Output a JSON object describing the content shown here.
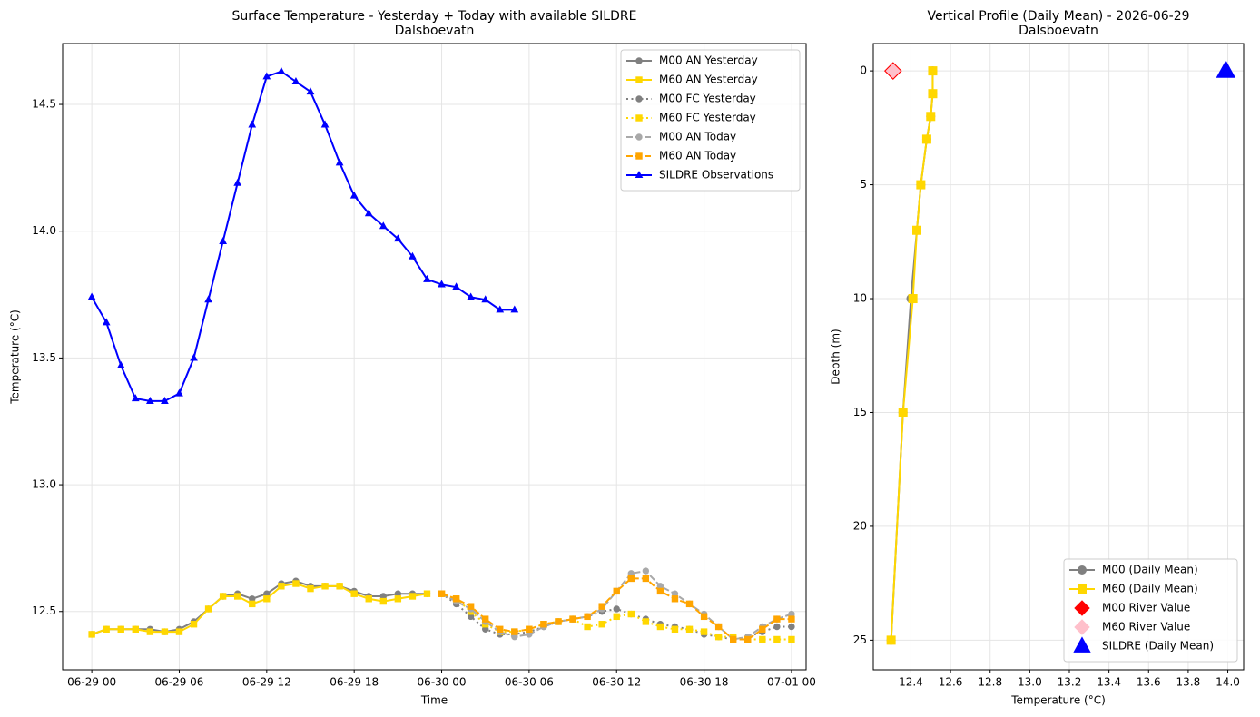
{
  "chart_data": [
    {
      "type": "line",
      "title": "Surface Temperature - Yesterday + Today with available SILDRE",
      "subtitle": "Dalsboevatn",
      "x_label": "Time",
      "y_label": "Temperature (°C)",
      "grid": true,
      "legend": "upper right",
      "xlim": [
        "06-28 22",
        "07-01 01"
      ],
      "xticks": [
        "06-29 00",
        "06-29 06",
        "06-29 12",
        "06-29 18",
        "06-30 00",
        "06-30 06",
        "06-30 12",
        "06-30 18",
        "07-01 00"
      ],
      "ylim": [
        12.27,
        14.74
      ],
      "yticks": [
        12.5,
        {
          "value": 13,
          "label": "13.0"
        },
        13.5,
        {
          "value": 14,
          "label": "14.0"
        },
        14.5
      ],
      "x": [
        "06-29 00",
        "06-29 01",
        "06-29 02",
        "06-29 03",
        "06-29 04",
        "06-29 05",
        "06-29 06",
        "06-29 07",
        "06-29 08",
        "06-29 09",
        "06-29 10",
        "06-29 11",
        "06-29 12",
        "06-29 13",
        "06-29 14",
        "06-29 15",
        "06-29 16",
        "06-29 17",
        "06-29 18",
        "06-29 19",
        "06-29 20",
        "06-29 21",
        "06-29 22",
        "06-29 23",
        "06-30 00",
        "06-30 01",
        "06-30 02",
        "06-30 03",
        "06-30 04",
        "06-30 05",
        "06-30 06",
        "06-30 07",
        "06-30 08",
        "06-30 09",
        "06-30 10",
        "06-30 11",
        "06-30 12",
        "06-30 13",
        "06-30 14",
        "06-30 15",
        "06-30 16",
        "06-30 17",
        "06-30 18",
        "06-30 19",
        "06-30 20",
        "06-30 21",
        "06-30 22",
        "06-30 23",
        "07-01 00"
      ],
      "series": [
        {
          "name": "M00 AN Yesterday",
          "color": "#808080",
          "line_style": "solid",
          "marker": "circle",
          "values": [
            12.41,
            12.43,
            12.43,
            12.43,
            12.43,
            12.42,
            12.43,
            12.46,
            12.51,
            12.56,
            12.57,
            12.55,
            12.57,
            12.61,
            12.62,
            12.6,
            12.6,
            12.6,
            12.58,
            12.56,
            12.56,
            12.57,
            12.57,
            12.57,
            null,
            null,
            null,
            null,
            null,
            null,
            null,
            null,
            null,
            null,
            null,
            null,
            null,
            null,
            null,
            null,
            null,
            null,
            null,
            null,
            null,
            null,
            null,
            null,
            null
          ]
        },
        {
          "name": "M60 AN Yesterday",
          "color": "#ffd700",
          "line_style": "solid",
          "marker": "square",
          "values": [
            12.41,
            12.43,
            12.43,
            12.43,
            12.42,
            12.42,
            12.42,
            12.45,
            12.51,
            12.56,
            12.56,
            12.53,
            12.55,
            12.6,
            12.61,
            12.59,
            12.6,
            12.6,
            12.57,
            12.55,
            12.54,
            12.55,
            12.56,
            12.57,
            null,
            null,
            null,
            null,
            null,
            null,
            null,
            null,
            null,
            null,
            null,
            null,
            null,
            null,
            null,
            null,
            null,
            null,
            null,
            null,
            null,
            null,
            null,
            null,
            null
          ]
        },
        {
          "name": "M00 FC Yesterday",
          "color": "#808080",
          "line_style": "dotted",
          "marker": "circle",
          "values": [
            null,
            null,
            null,
            null,
            null,
            null,
            null,
            null,
            null,
            null,
            null,
            null,
            null,
            null,
            null,
            null,
            null,
            null,
            null,
            null,
            null,
            null,
            null,
            null,
            12.57,
            12.53,
            12.48,
            12.43,
            12.41,
            12.41,
            12.42,
            12.44,
            12.46,
            12.47,
            12.48,
            12.5,
            12.51,
            12.49,
            12.47,
            12.45,
            12.44,
            12.43,
            12.41,
            12.4,
            12.39,
            12.4,
            12.42,
            12.44,
            12.44
          ]
        },
        {
          "name": "M60 FC Yesterday",
          "color": "#ffd700",
          "line_style": "dotted",
          "marker": "square",
          "values": [
            null,
            null,
            null,
            null,
            null,
            null,
            null,
            null,
            null,
            null,
            null,
            null,
            null,
            null,
            null,
            null,
            null,
            null,
            null,
            null,
            null,
            null,
            null,
            null,
            12.57,
            12.55,
            12.5,
            12.45,
            12.42,
            12.42,
            12.43,
            12.45,
            12.46,
            12.47,
            12.44,
            12.45,
            12.48,
            12.49,
            12.46,
            12.44,
            12.43,
            12.43,
            12.42,
            12.4,
            12.4,
            12.39,
            12.39,
            12.39,
            12.39
          ]
        },
        {
          "name": "M00 AN Today",
          "color": "#a9a9a9",
          "line_style": "dashed",
          "marker": "circle",
          "values": [
            null,
            null,
            null,
            null,
            null,
            null,
            null,
            null,
            null,
            null,
            null,
            null,
            null,
            null,
            null,
            null,
            null,
            null,
            null,
            null,
            null,
            null,
            null,
            null,
            12.57,
            12.54,
            12.51,
            12.46,
            12.42,
            12.4,
            12.41,
            12.44,
            12.46,
            12.47,
            12.48,
            12.51,
            12.58,
            12.65,
            12.66,
            12.6,
            12.57,
            12.53,
            12.49,
            12.44,
            12.39,
            12.4,
            12.44,
            12.47,
            12.49
          ]
        },
        {
          "name": "M60 AN Today",
          "color": "#ffa500",
          "line_style": "dashed",
          "marker": "square",
          "values": [
            null,
            null,
            null,
            null,
            null,
            null,
            null,
            null,
            null,
            null,
            null,
            null,
            null,
            null,
            null,
            null,
            null,
            null,
            null,
            null,
            null,
            null,
            null,
            null,
            12.57,
            12.55,
            12.52,
            12.47,
            12.43,
            12.42,
            12.43,
            12.45,
            12.46,
            12.47,
            12.48,
            12.52,
            12.58,
            12.63,
            12.63,
            12.58,
            12.55,
            12.53,
            12.48,
            12.44,
            12.39,
            12.39,
            12.43,
            12.47,
            12.47
          ]
        },
        {
          "name": "SILDRE Observations",
          "color": "#0000ff",
          "line_style": "solid",
          "marker": "triangle",
          "values": [
            13.74,
            13.64,
            13.47,
            13.34,
            13.33,
            13.33,
            13.36,
            13.5,
            13.73,
            13.96,
            14.19,
            14.42,
            14.61,
            14.63,
            14.59,
            14.55,
            14.42,
            14.27,
            14.14,
            14.07,
            14.02,
            13.97,
            13.9,
            13.81,
            13.79,
            13.78,
            13.74,
            13.73,
            13.69,
            13.69,
            null,
            null,
            null,
            null,
            null,
            null,
            null,
            null,
            null,
            null,
            null,
            null,
            null,
            null,
            null,
            null,
            null,
            null,
            null
          ]
        }
      ]
    },
    {
      "type": "line",
      "title": "Vertical Profile (Daily Mean) - 2026-06-29",
      "subtitle": "Dalsboevatn",
      "x_label": "Temperature (°C)",
      "y_label": "Depth (m)",
      "grid": true,
      "legend": "lower right",
      "y_inverted": true,
      "xlim": [
        12.21,
        14.08
      ],
      "xticks": [
        12.4,
        12.6,
        12.8,
        {
          "value": 13,
          "label": "13.0"
        },
        13.2,
        13.4,
        13.6,
        13.8,
        {
          "value": 14,
          "label": "14.0"
        }
      ],
      "ylim": [
        -1.2,
        26.3
      ],
      "yticks": [
        0,
        5,
        10,
        15,
        20,
        25
      ],
      "series": [
        {
          "name": "M00 (Daily Mean)",
          "color": "#808080",
          "line_style": "solid",
          "marker": "circle",
          "x": [
            12.51,
            12.51,
            12.5,
            12.48,
            12.45,
            12.43,
            12.4,
            12.36,
            12.3
          ],
          "values": [
            0,
            1,
            2,
            3,
            5,
            7,
            10,
            15,
            25
          ]
        },
        {
          "name": "M60 (Daily Mean)",
          "color": "#ffd700",
          "line_style": "solid",
          "marker": "square",
          "x": [
            12.51,
            12.51,
            12.5,
            12.48,
            12.45,
            12.43,
            12.41,
            12.36,
            12.3
          ],
          "values": [
            0,
            1,
            2,
            3,
            5,
            7,
            10,
            15,
            25
          ]
        },
        {
          "name": "M00 River Value",
          "color": "#ff0000",
          "line_style": "none",
          "marker": "diamond",
          "x": [
            12.31
          ],
          "values": [
            0
          ]
        },
        {
          "name": "M60 River Value",
          "color": "#ffc0cb",
          "line_style": "none",
          "marker": "diamond",
          "x": [
            12.31
          ],
          "values": [
            0
          ]
        },
        {
          "name": "SILDRE (Daily Mean)",
          "color": "#0000ff",
          "line_style": "none",
          "marker": "triangle",
          "x": [
            13.99
          ],
          "values": [
            0
          ]
        }
      ]
    }
  ]
}
